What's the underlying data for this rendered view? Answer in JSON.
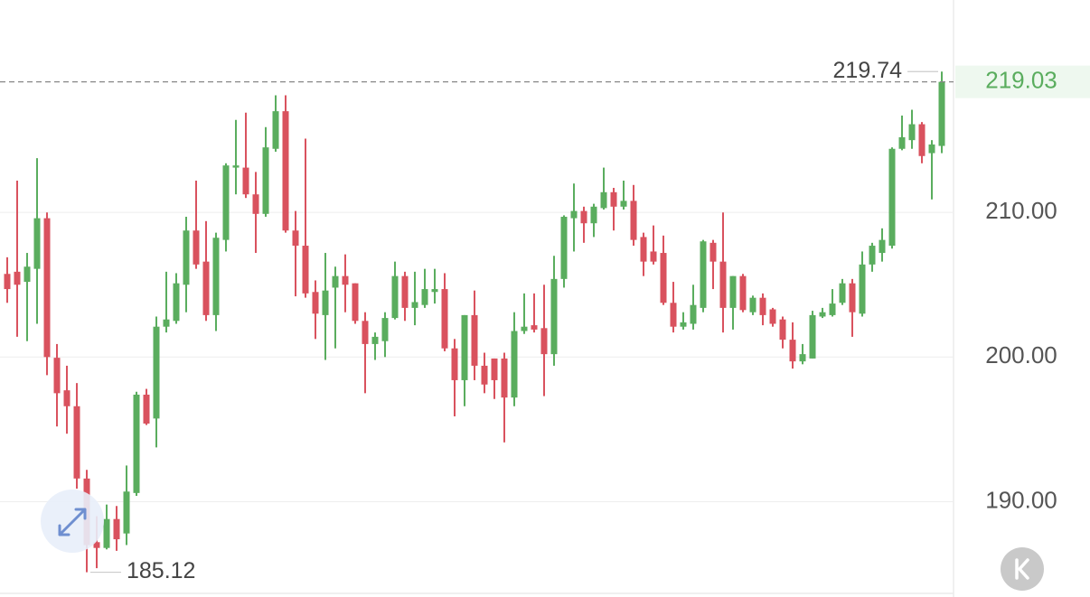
{
  "chart_data": {
    "type": "candlestick",
    "open": [
      205.75,
      205.9,
      205.2,
      206.1,
      209.6,
      199.95,
      197.7,
      196.6,
      191.6,
      187.2,
      186.8,
      188.8,
      187.8,
      190.6,
      197.4,
      195.75,
      202.1,
      202.5,
      205,
      208.75,
      206.6,
      202.9,
      208.1,
      213.1,
      213.1,
      211.25,
      209.9,
      214.4,
      217,
      208.75,
      207.7,
      204.5,
      202.9,
      204.8,
      205.6,
      205.1,
      202.5,
      200.9,
      201.1,
      202.7,
      205.6,
      203.4,
      203.6,
      204.5,
      204.7,
      200.6,
      198.4,
      202.9,
      199.4,
      199.9,
      199.9,
      197.2,
      201.8,
      202.2,
      202,
      200.2,
      205.4,
      209.6,
      210.1,
      209.25,
      210.3,
      211.4,
      210.4,
      210.8,
      208.3,
      207.3,
      207.2,
      203.75,
      202.1,
      202.3,
      203.4,
      207.9,
      206.6,
      203.4,
      205.6,
      203.1,
      204.1,
      203.3,
      202.6,
      201.2,
      199.7,
      199.9,
      202.8,
      202.9,
      203.75,
      205.1,
      203,
      206.4,
      207.2,
      207.7,
      214.4,
      215,
      216.1,
      214.1,
      214.6
    ],
    "high": [
      206.9,
      212.2,
      207.2,
      213.75,
      210,
      200.9,
      199.4,
      198.2,
      192.2,
      189,
      189.8,
      189.7,
      192.5,
      197.6,
      197.8,
      202.8,
      205.9,
      205.8,
      209.7,
      212.2,
      209.4,
      208.6,
      213.4,
      216.4,
      216.9,
      212.8,
      215.9,
      218.1,
      218.1,
      210.1,
      215.1,
      205.3,
      207.2,
      206.25,
      207.1,
      205.1,
      203.1,
      201.7,
      203.1,
      206.6,
      205.9,
      205.9,
      206.1,
      206.1,
      205.8,
      201.25,
      202.9,
      204.6,
      200.3,
      199.9,
      200.3,
      203.1,
      204.4,
      204.4,
      205,
      207,
      209.8,
      212,
      210.4,
      210.6,
      213.1,
      211.7,
      212.2,
      211.9,
      208.6,
      209.1,
      208.4,
      205.2,
      203.1,
      205,
      208.1,
      208.1,
      210,
      205.6,
      205.75,
      204.25,
      204.4,
      203.4,
      202.8,
      202.4,
      200.9,
      203.2,
      203.4,
      204.7,
      205.4,
      205.4,
      207.3,
      207.9,
      208.9,
      214.5,
      216.7,
      217.1,
      216.25,
      215,
      219.74
    ],
    "low": [
      203.75,
      201.4,
      201.1,
      202.3,
      198.75,
      195.2,
      194.7,
      190.9,
      185.12,
      185.4,
      186.7,
      186.6,
      187,
      190.4,
      195.3,
      193.75,
      201.7,
      202.3,
      203.1,
      206.1,
      202.5,
      201.8,
      207.3,
      211.25,
      211,
      207.2,
      209.7,
      214.2,
      208.6,
      204.2,
      204.1,
      201.25,
      199.8,
      200.6,
      203.1,
      202.3,
      197.5,
      199.8,
      200,
      202.6,
      202.5,
      202.2,
      203.4,
      203.7,
      200.4,
      195.9,
      196.6,
      198.4,
      197.5,
      197.1,
      194.1,
      196.6,
      201.6,
      201.7,
      197.3,
      199.4,
      204.8,
      207.3,
      207.9,
      208.3,
      210.2,
      208.75,
      210.2,
      207.7,
      205.6,
      206.4,
      203.6,
      201.7,
      201.9,
      201.9,
      203.1,
      204.7,
      201.7,
      201.9,
      203.1,
      202.9,
      202.2,
      202.1,
      200.6,
      199.2,
      199.5,
      199.9,
      202.7,
      202.8,
      203.6,
      201.4,
      202.8,
      205.9,
      206.6,
      207.5,
      214.3,
      214.4,
      213.4,
      210.9,
      214.1
    ],
    "close": [
      204.7,
      205,
      206.25,
      209.6,
      200,
      197.5,
      196.6,
      191.6,
      187,
      186.8,
      188.8,
      187.4,
      190.7,
      197.4,
      195.4,
      202.1,
      202.6,
      205.1,
      208.75,
      206.4,
      202.9,
      208.25,
      213.25,
      213.25,
      211.25,
      209.9,
      214.5,
      217,
      208.75,
      207.7,
      204.4,
      203,
      204.6,
      205.6,
      205,
      202.5,
      200.9,
      201.4,
      202.7,
      205.6,
      203.4,
      203.8,
      204.7,
      204.7,
      200.6,
      198.4,
      202.9,
      199.4,
      198.1,
      198.4,
      197.2,
      201.8,
      202.1,
      201.9,
      200.2,
      205.4,
      209.7,
      210.1,
      209.25,
      210.4,
      211.4,
      210.4,
      210.8,
      208.1,
      206.6,
      206.6,
      203.75,
      202.1,
      202.4,
      203.6,
      208,
      206.6,
      203.4,
      205.6,
      203.25,
      204.1,
      202.9,
      202.3,
      201.2,
      199.7,
      200.2,
      202.9,
      203.1,
      203.7,
      205.1,
      203.1,
      206.4,
      207.7,
      208.1,
      214.4,
      215.2,
      216.1,
      213.9,
      214.7,
      219.03
    ],
    "up_color": "#5aad5e",
    "down_color": "#d9525e",
    "ylim": [
      183.72,
      224.69
    ],
    "yticks": [
      {
        "value": 190,
        "label": "190.00"
      },
      {
        "value": 200,
        "label": "200.00"
      },
      {
        "value": 210,
        "label": "210.00"
      }
    ],
    "grid": true
  }
}
